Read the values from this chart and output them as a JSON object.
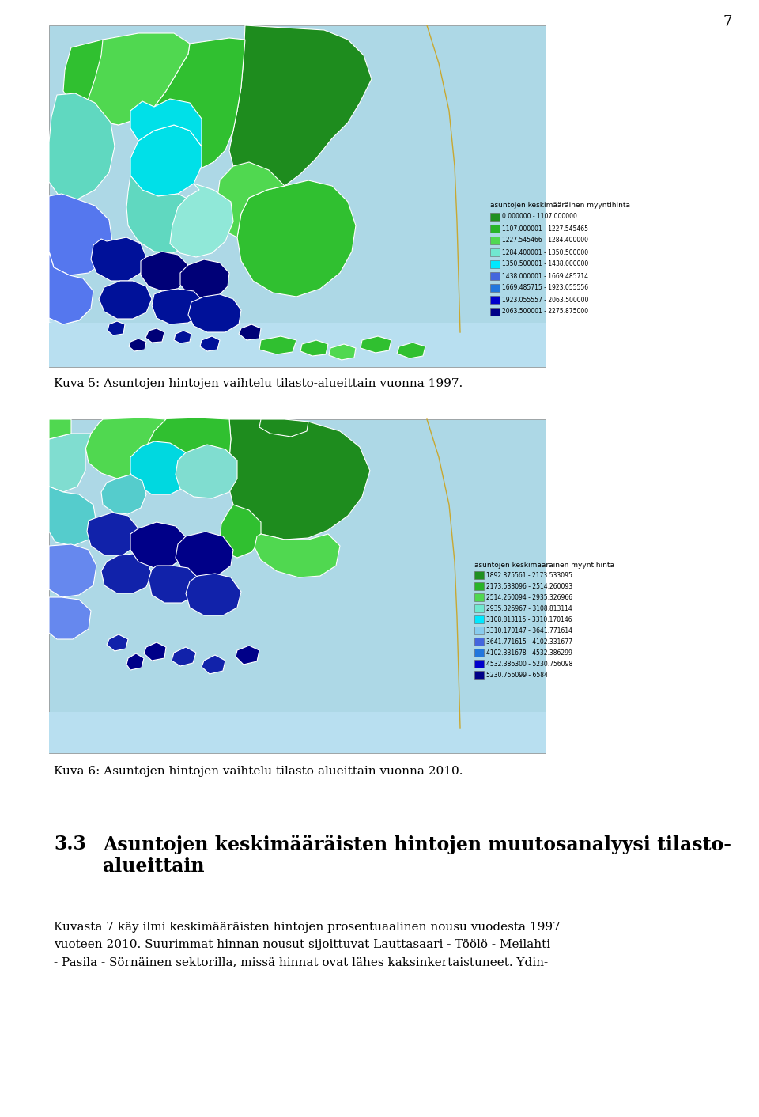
{
  "page_number": "7",
  "figure1_caption": "Kuva 5: Asuntojen hintojen vaihtelu tilasto-alueittain vuonna 1997.",
  "figure2_caption": "Kuva 6: Asuntojen hintojen vaihtelu tilasto-alueittain vuonna 2010.",
  "section_number": "3.3",
  "section_title_line1": "Asuntojen keskimääräisten hintojen muutosanalyysi tilasto-",
  "section_title_line2": "alueittain",
  "body_line1": "Kuvasta 7 käy ilmi keskimääräisten hintojen prosentuaalinen nousu vuodesta 1997",
  "body_line2": "vuoteen 2010. Suurimmat hinnan nousut sijoittuvat Lauttasaari - Töölö - Meilahti",
  "body_line3": "- Pasila - Sörnäinen sektorilla, missä hinnat ovat lähes kaksinkertaistuneet. Ydin-",
  "legend1_title": "asuntojen keskimääräinen myyntihinta",
  "legend1_colors": [
    "#209020",
    "#28b428",
    "#50d850",
    "#70e8d0",
    "#00e8ff",
    "#4466dd",
    "#2277dd",
    "#0000cc",
    "#000088"
  ],
  "legend1_labels": [
    "0.000000 - 1107.000000",
    "1107.000001 - 1227.545465",
    "1227.545466 - 1284.400000",
    "1284.400001 - 1350.500000",
    "1350.500001 - 1438.000000",
    "1438.000001 - 1669.485714",
    "1669.485715 - 1923.055556",
    "1923.055557 - 2063.500000",
    "2063.500001 - 2275.875000"
  ],
  "legend2_title": "asuntojen keskimääräinen myyntihinta",
  "legend2_colors": [
    "#209020",
    "#28b428",
    "#50d850",
    "#70e8d0",
    "#00e8ff",
    "#88ccee",
    "#4466dd",
    "#2277dd",
    "#0000cc",
    "#000088"
  ],
  "legend2_labels": [
    "1892.875561 - 2173.533095",
    "2173.533096 - 2514.260093",
    "2514.260094 - 2935.326966",
    "2935.326967 - 3108.813114",
    "3108.813115 - 3310.170146",
    "3310.170147 - 3641.771614",
    "3641.771615 - 4102.331677",
    "4102.331678 - 4532.386299",
    "4532.386300 - 5230.756098",
    "5230.756099 - 6584"
  ],
  "page_bg": "#ffffff",
  "map_bg": "#add8e6",
  "sea_color": "#b8dff0",
  "coastline_color": "#c8a832"
}
